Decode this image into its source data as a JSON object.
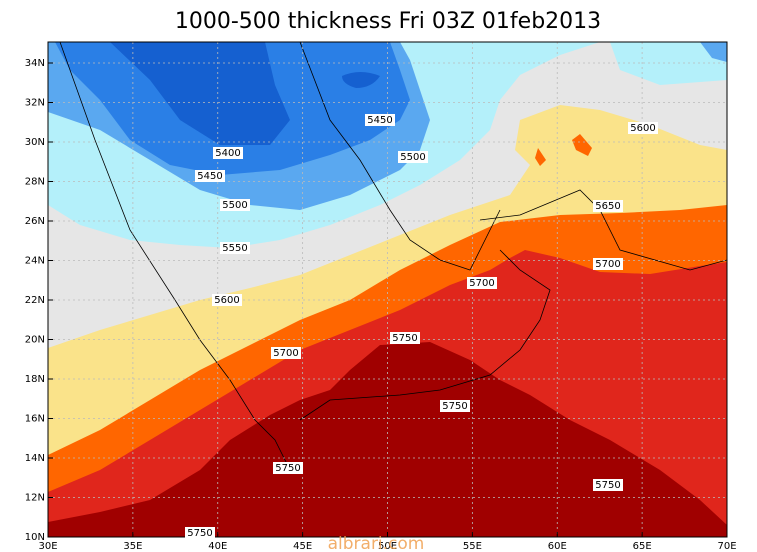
{
  "title": "1000-500 thickness Fri 03Z 01feb2013",
  "lon_labels": [
    "30E",
    "35E",
    "40E",
    "45E",
    "50E",
    "55E",
    "60E",
    "65E",
    "70E"
  ],
  "lat_labels": [
    "10N",
    "12N",
    "14N",
    "16N",
    "18N",
    "20N",
    "22N",
    "24N",
    "26N",
    "28N",
    "30N",
    "32N",
    "34N"
  ],
  "contour_labels": [
    "5450",
    "5400",
    "5500",
    "5450",
    "5500",
    "5550",
    "5600",
    "5650",
    "5700",
    "5700",
    "5600",
    "5750",
    "5700",
    "5750",
    "5750",
    "5750",
    "5750"
  ],
  "watermark": "albrari.com"
}
